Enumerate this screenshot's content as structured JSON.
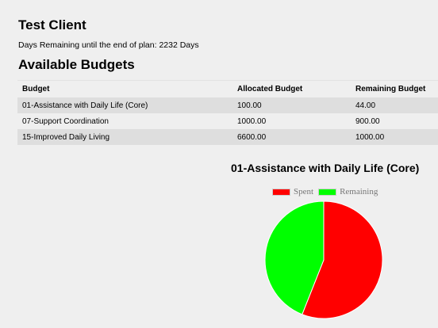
{
  "client": {
    "name": "Test Client",
    "days_remaining_text": "Days Remaining until the end of plan: 2232 Days"
  },
  "budgets": {
    "heading": "Available Budgets",
    "columns": [
      "Budget",
      "Allocated Budget",
      "Remaining Budget"
    ],
    "rows": [
      [
        "01-Assistance with Daily Life (Core)",
        "100.00",
        "44.00"
      ],
      [
        "07-Support Coordination",
        "1000.00",
        "900.00"
      ],
      [
        "15-Improved Daily Living",
        "6600.00",
        "1000.00"
      ]
    ]
  },
  "chart_data": {
    "type": "pie",
    "title": "01-Assistance with Daily Life (Core)",
    "categories": [
      "Spent",
      "Remaining"
    ],
    "values": [
      56,
      44
    ],
    "colors": [
      "#ff0000",
      "#00ff00"
    ],
    "legend_position": "top"
  }
}
